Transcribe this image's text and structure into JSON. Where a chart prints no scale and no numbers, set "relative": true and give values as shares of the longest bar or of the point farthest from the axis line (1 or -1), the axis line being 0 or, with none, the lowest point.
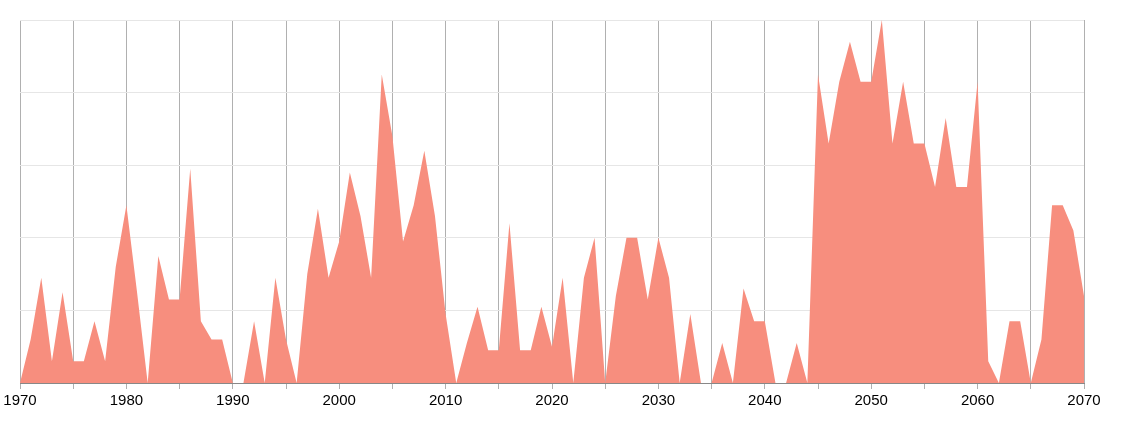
{
  "chart_data": {
    "type": "area",
    "relative": true,
    "grid": true,
    "legend": false,
    "marker": "none",
    "xlim": [
      1970,
      2070
    ],
    "xticks": [
      1970,
      {
        "value": 1975,
        "label": null
      },
      1980,
      {
        "value": 1985,
        "label": null
      },
      1990,
      {
        "value": 1995,
        "label": null
      },
      2000,
      {
        "value": 2005,
        "label": null
      },
      2010,
      {
        "value": 2015,
        "label": null
      },
      2020,
      {
        "value": 2025,
        "label": null
      },
      2030,
      {
        "value": 2035,
        "label": null
      },
      2040,
      {
        "value": 2045,
        "label": null
      },
      2050,
      {
        "value": 2055,
        "label": null
      },
      2060,
      {
        "value": 2065,
        "label": null
      },
      2070
    ],
    "x": [
      1970,
      1971,
      1972,
      1973,
      1974,
      1975,
      1976,
      1977,
      1978,
      1979,
      1980,
      1981,
      1982,
      1983,
      1984,
      1985,
      1986,
      1987,
      1988,
      1989,
      1990,
      1991,
      1992,
      1993,
      1994,
      1995,
      1996,
      1997,
      1998,
      1999,
      2000,
      2001,
      2002,
      2003,
      2004,
      2005,
      2006,
      2007,
      2008,
      2009,
      2010,
      2011,
      2012,
      2013,
      2014,
      2015,
      2016,
      2017,
      2018,
      2019,
      2020,
      2021,
      2022,
      2023,
      2024,
      2025,
      2026,
      2027,
      2028,
      2029,
      2030,
      2031,
      2032,
      2033,
      2034,
      2035,
      2036,
      2037,
      2038,
      2039,
      2040,
      2041,
      2042,
      2043,
      2044,
      2045,
      2046,
      2047,
      2048,
      2049,
      2050,
      2051,
      2052,
      2053,
      2054,
      2055,
      2056,
      2057,
      2058,
      2059,
      2060,
      2061,
      2062,
      2063,
      2064,
      2065,
      2066,
      2067,
      2068,
      2069,
      2070
    ],
    "series": [
      {
        "color": "#f78e7e",
        "values": [
          0,
          0.12,
          0.29,
          0.06,
          0.25,
          0.06,
          0.06,
          0.17,
          0.06,
          0.32,
          0.49,
          0.25,
          0,
          0.35,
          0.23,
          0.23,
          0.59,
          0.17,
          0.12,
          0.12,
          0,
          0,
          0.17,
          0,
          0.29,
          0.12,
          0,
          0.3,
          0.48,
          0.29,
          0.39,
          0.58,
          0.46,
          0.29,
          0.85,
          0.68,
          0.39,
          0.49,
          0.64,
          0.46,
          0.19,
          0,
          0.11,
          0.21,
          0.09,
          0.09,
          0.44,
          0.09,
          0.09,
          0.21,
          0.1,
          0.29,
          0,
          0.29,
          0.4,
          0,
          0.24,
          0.4,
          0.4,
          0.23,
          0.4,
          0.29,
          0,
          0.19,
          0,
          0,
          0.11,
          0,
          0.26,
          0.17,
          0.17,
          0,
          0,
          0.11,
          0,
          0.85,
          0.66,
          0.83,
          0.94,
          0.83,
          0.83,
          1,
          0.66,
          0.83,
          0.66,
          0.66,
          0.54,
          0.73,
          0.54,
          0.54,
          0.83,
          0.06,
          0,
          0.17,
          0.17,
          0,
          0.12,
          0.49,
          0.49,
          0.42,
          0.24
        ]
      }
    ]
  }
}
